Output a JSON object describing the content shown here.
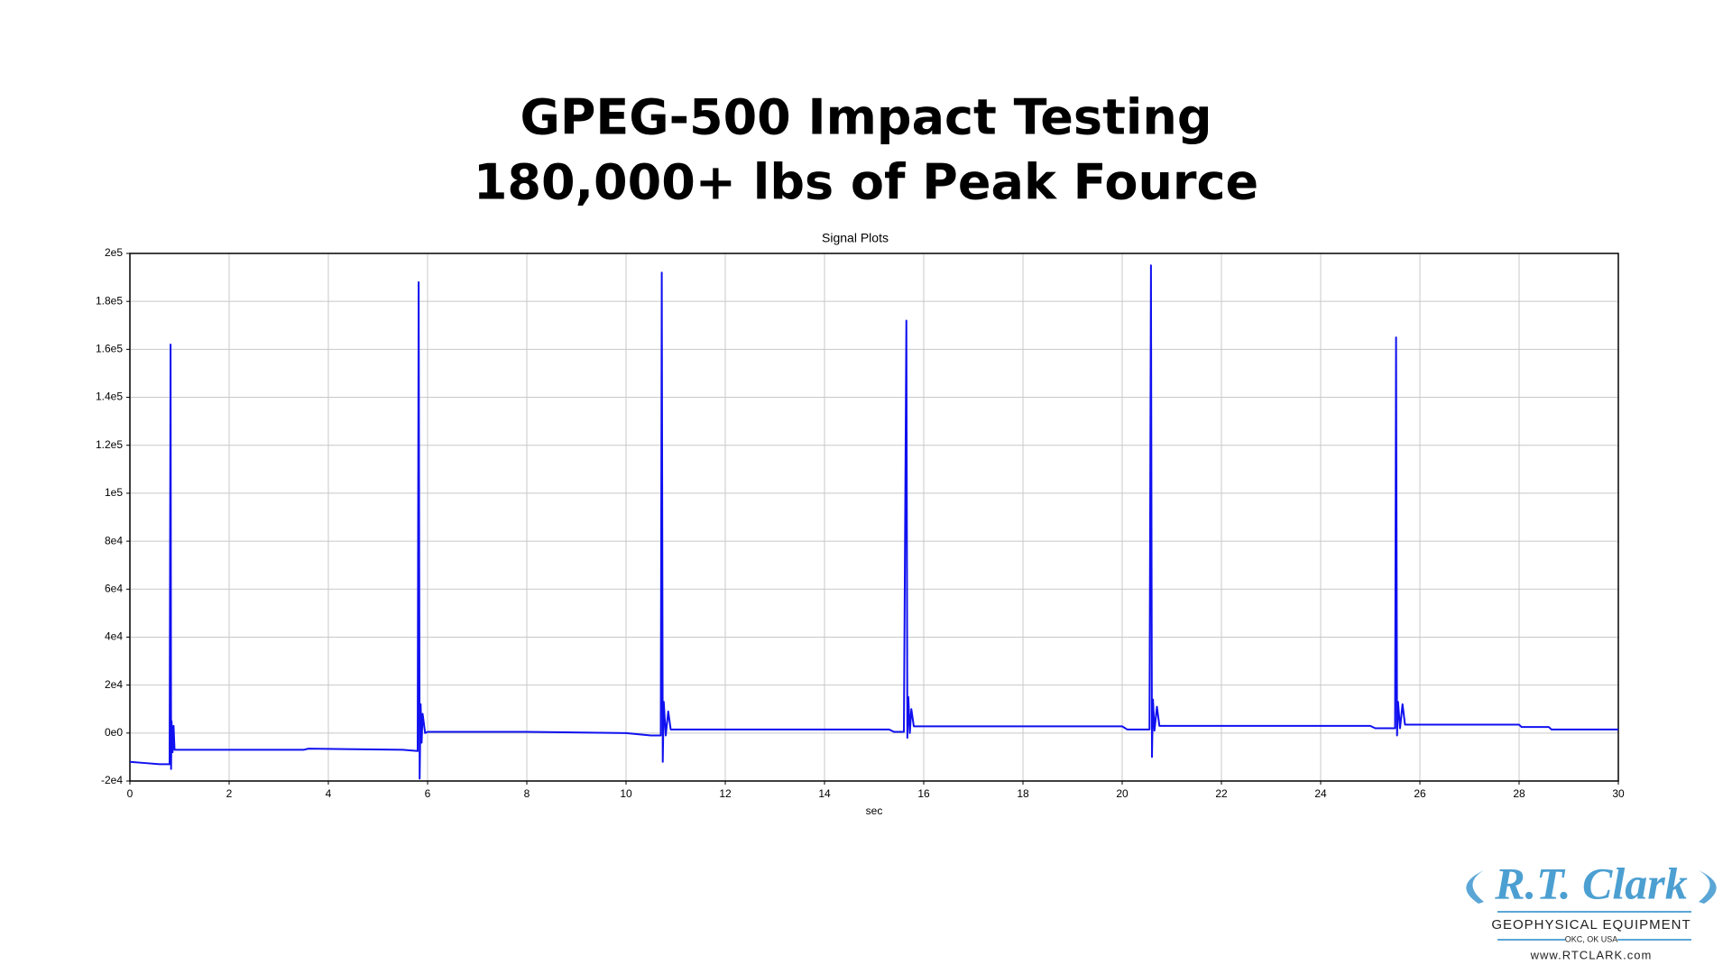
{
  "chart_data": {
    "type": "line",
    "title": "GPEG-500 Impact Testing",
    "subtitle": "180,000+ lbs of Peak Fource",
    "plot_title": "Signal Plots",
    "x_label": "sec",
    "x": [
      0,
      0.3,
      0.6,
      0.8,
      0.82,
      0.83,
      0.84,
      0.86,
      0.88,
      0.9,
      0.95,
      3.5,
      3.6,
      5.5,
      5.8,
      5.82,
      5.84,
      5.86,
      5.88,
      5.9,
      5.95,
      6.0,
      8.0,
      10.0,
      10.5,
      10.7,
      10.72,
      10.74,
      10.76,
      10.8,
      10.85,
      10.9,
      15.3,
      15.4,
      15.6,
      15.65,
      15.67,
      15.69,
      15.72,
      15.75,
      15.8,
      20.0,
      20.1,
      20.55,
      20.58,
      20.6,
      20.62,
      20.65,
      20.7,
      20.75,
      25.0,
      25.1,
      25.5,
      25.52,
      25.54,
      25.56,
      25.6,
      25.65,
      25.7,
      28.0,
      28.05,
      28.6,
      28.65,
      30
    ],
    "series": [
      {
        "color": "#1010f0",
        "values": [
          -12000,
          -12500,
          -13000,
          -13000,
          162000,
          -15000,
          5000,
          -8000,
          3000,
          -7000,
          -7000,
          -7000,
          -6500,
          -7000,
          -7500,
          188000,
          -19000,
          12000,
          -4000,
          8000,
          0,
          500,
          500,
          0,
          -1000,
          -1000,
          192000,
          -12000,
          13000,
          -1000,
          9000,
          1500,
          1500,
          500,
          500,
          172000,
          -2000,
          15000,
          0,
          10000,
          2800,
          2800,
          1500,
          1500,
          195000,
          -10000,
          14000,
          1000,
          11000,
          3000,
          3000,
          2000,
          2000,
          165000,
          -1000,
          13000,
          2000,
          12000,
          3500,
          3500,
          2500,
          2500,
          1500,
          1500
        ]
      }
    ],
    "xlim": [
      0,
      30
    ],
    "xticks": [
      0,
      2,
      4,
      6,
      8,
      10,
      12,
      14,
      16,
      18,
      20,
      22,
      24,
      26,
      28,
      30
    ],
    "ylim": [
      -20000,
      200000
    ],
    "yticks": [
      {
        "value": -20000,
        "label": "-2e4"
      },
      {
        "value": 0,
        "label": "0e0"
      },
      {
        "value": 20000,
        "label": "2e4"
      },
      {
        "value": 40000,
        "label": "4e4"
      },
      {
        "value": 60000,
        "label": "6e4"
      },
      {
        "value": 80000,
        "label": "8e4"
      },
      {
        "value": 100000,
        "label": "1e5"
      },
      {
        "value": 120000,
        "label": "1.2e5"
      },
      {
        "value": 140000,
        "label": "1.4e5"
      },
      {
        "value": 160000,
        "label": "1.6e5"
      },
      {
        "value": 180000,
        "label": "1.8e5"
      },
      {
        "value": 200000,
        "label": "2e5"
      }
    ],
    "grid": true
  },
  "logo": {
    "name": "R.T. Clark",
    "tagline": "GEOPHYSICAL EQUIPMENT",
    "location": "OKC, OK  USA",
    "url": "www.RTCLARK.com"
  }
}
